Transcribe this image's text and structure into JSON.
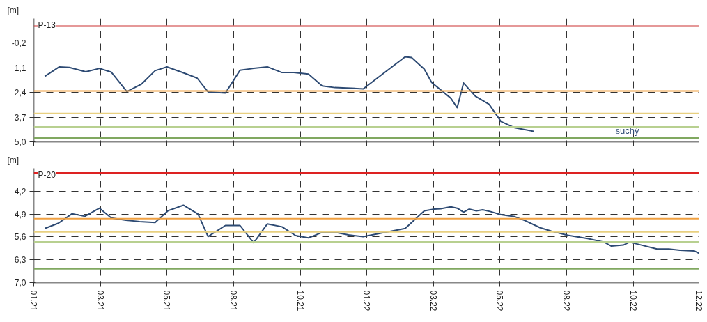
{
  "chart_data": [
    {
      "type": "line",
      "title": "P-13",
      "ylabel": "[m]",
      "xlim": [
        "2021-01-01",
        "2022-12-31"
      ],
      "ylim": [
        5.0,
        -1.5
      ],
      "yticks": [
        {
          "value": -0.2,
          "label": "-0,2"
        },
        {
          "value": 1.1,
          "label": "1,1"
        },
        {
          "value": 2.4,
          "label": "2,4"
        },
        {
          "value": 3.7,
          "label": "3,7"
        },
        {
          "value": 5.0,
          "label": "5,0"
        }
      ],
      "xticks": [
        {
          "value": "2021-01-01",
          "label": null
        },
        {
          "value": "2021-03-15",
          "label": null
        },
        {
          "value": "2021-05-27",
          "label": null
        },
        {
          "value": "2021-08-08",
          "label": null
        },
        {
          "value": "2021-10-20",
          "label": null
        },
        {
          "value": "2022-01-01",
          "label": null
        },
        {
          "value": "2022-03-15",
          "label": null
        },
        {
          "value": "2022-05-27",
          "label": null
        },
        {
          "value": "2022-08-08",
          "label": null
        },
        {
          "value": "2022-10-20",
          "label": null
        },
        {
          "value": "2022-12-31",
          "label": null
        }
      ],
      "tick_labels": "y",
      "grid": true,
      "line_style": "solid",
      "x": [
        "2021-01-13",
        "2021-01-29",
        "2021-02-09",
        "2021-02-27",
        "2021-03-14",
        "2021-03-27",
        "2021-04-13",
        "2021-04-29",
        "2021-05-14",
        "2021-05-27",
        "2021-06-12",
        "2021-06-29",
        "2021-07-11",
        "2021-07-30",
        "2021-08-15",
        "2021-08-30",
        "2021-09-14",
        "2021-09-30",
        "2021-10-13",
        "2021-10-29",
        "2021-11-13",
        "2021-11-27",
        "2021-12-10",
        "2021-12-28",
        "2022-02-12",
        "2022-02-19",
        "2022-03-05",
        "2022-03-13",
        "2022-04-03",
        "2022-04-10",
        "2022-04-17",
        "2022-04-30",
        "2022-05-15",
        "2022-05-28",
        "2022-06-12",
        "2022-07-03"
      ],
      "series": [
        {
          "color": "#2d4a73",
          "values": [
            1.55,
            1.05,
            1.08,
            1.31,
            1.13,
            1.33,
            2.35,
            1.96,
            1.25,
            1.05,
            1.33,
            1.64,
            2.37,
            2.43,
            1.23,
            1.13,
            1.05,
            1.35,
            1.35,
            1.43,
            2.05,
            2.14,
            2.16,
            2.21,
            0.52,
            0.56,
            1.17,
            1.87,
            2.7,
            3.2,
            1.9,
            2.6,
            3.02,
            3.93,
            4.26,
            4.45
          ]
        }
      ],
      "ref_lines": [
        {
          "axis": "y",
          "value": -1.1,
          "color": "#cc3333"
        },
        {
          "axis": "y",
          "value": 2.32,
          "color": "#f0a040"
        },
        {
          "axis": "y",
          "value": 3.5,
          "color": "#e8d080"
        },
        {
          "axis": "y",
          "value": 4.21,
          "color": "#b8d090"
        },
        {
          "axis": "y",
          "value": 4.8,
          "color": "#80a860"
        }
      ],
      "annotations": [
        "suchý"
      ]
    },
    {
      "type": "line",
      "title": "P-20",
      "ylabel": "[m]",
      "xlim": [
        "2021-01-01",
        "2022-12-31"
      ],
      "ylim": [
        7.0,
        3.5
      ],
      "yticks": [
        {
          "value": 4.2,
          "label": "4,2"
        },
        {
          "value": 4.9,
          "label": "4,9"
        },
        {
          "value": 5.6,
          "label": "5,6"
        },
        {
          "value": 6.3,
          "label": "6,3"
        },
        {
          "value": 7.0,
          "label": "7,0"
        }
      ],
      "xticks": [
        {
          "value": "2021-01-01",
          "label": "01.21"
        },
        {
          "value": "2021-03-15",
          "label": "03.21"
        },
        {
          "value": "2021-05-27",
          "label": "05.21"
        },
        {
          "value": "2021-08-08",
          "label": "08.21"
        },
        {
          "value": "2021-10-20",
          "label": "10.21"
        },
        {
          "value": "2022-01-01",
          "label": "01.22"
        },
        {
          "value": "2022-03-15",
          "label": "03.22"
        },
        {
          "value": "2022-05-27",
          "label": "05.22"
        },
        {
          "value": "2022-08-08",
          "label": "08.22"
        },
        {
          "value": "2022-10-20",
          "label": "10.22"
        },
        {
          "value": "2022-12-31",
          "label": "12.22"
        }
      ],
      "grid": true,
      "line_style": "solid",
      "x": [
        "2021-01-13",
        "2021-01-28",
        "2021-02-12",
        "2021-02-26",
        "2021-03-14",
        "2021-03-27",
        "2021-04-12",
        "2021-04-27",
        "2021-05-14",
        "2021-05-28",
        "2021-06-14",
        "2021-06-30",
        "2021-07-11",
        "2021-07-30",
        "2021-08-15",
        "2021-08-30",
        "2021-09-14",
        "2021-09-30",
        "2021-10-15",
        "2021-10-29",
        "2021-11-13",
        "2021-11-27",
        "2021-12-12",
        "2021-12-28",
        "2022-02-12",
        "2022-03-05",
        "2022-03-16",
        "2022-03-23",
        "2022-04-03",
        "2022-04-10",
        "2022-04-17",
        "2022-04-23",
        "2022-05-01",
        "2022-05-08",
        "2022-05-16",
        "2022-05-28",
        "2022-06-12",
        "2022-06-24",
        "2022-07-10",
        "2022-07-22",
        "2022-08-09",
        "2022-08-31",
        "2022-09-18",
        "2022-09-26",
        "2022-10-09",
        "2022-10-16",
        "2022-10-29",
        "2022-11-15",
        "2022-11-28",
        "2022-12-10",
        "2022-12-26",
        "2022-12-31"
      ],
      "series": [
        {
          "color": "#2d4a73",
          "values": [
            5.34,
            5.18,
            4.89,
            4.97,
            4.72,
            5.02,
            5.09,
            5.13,
            5.16,
            4.8,
            4.63,
            4.9,
            5.59,
            5.25,
            5.25,
            5.78,
            5.2,
            5.29,
            5.56,
            5.63,
            5.46,
            5.46,
            5.54,
            5.59,
            5.34,
            4.8,
            4.75,
            4.74,
            4.68,
            4.72,
            4.84,
            4.75,
            4.8,
            4.77,
            4.82,
            4.92,
            4.98,
            5.11,
            5.32,
            5.42,
            5.55,
            5.65,
            5.76,
            5.88,
            5.85,
            5.76,
            5.85,
            5.97,
            5.97,
            6.01,
            6.03,
            6.1
          ]
        }
      ],
      "ref_lines": [
        {
          "axis": "y",
          "value": 3.64,
          "color": "#dd2222"
        },
        {
          "axis": "y",
          "value": 5.04,
          "color": "#f0a040"
        },
        {
          "axis": "y",
          "value": 5.45,
          "color": "#e8d080"
        },
        {
          "axis": "y",
          "value": 5.75,
          "color": "#b8d090"
        },
        {
          "axis": "y",
          "value": 6.58,
          "color": "#80a860"
        }
      ]
    }
  ]
}
